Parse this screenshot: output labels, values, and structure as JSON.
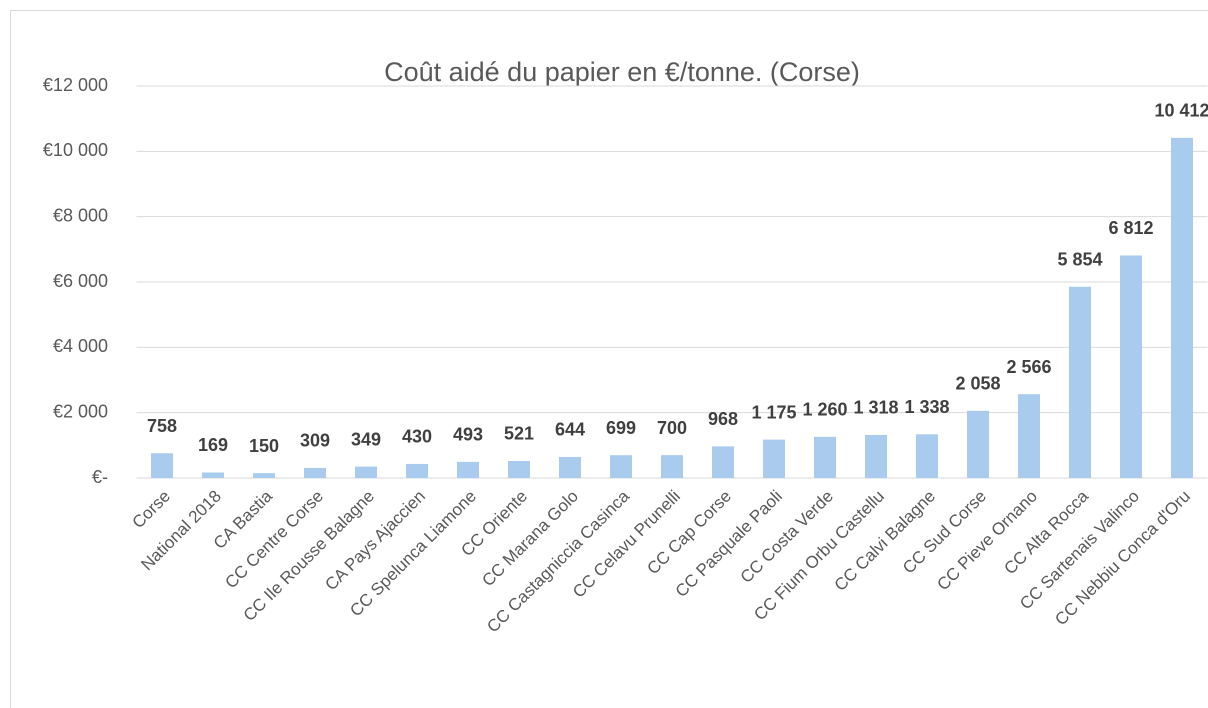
{
  "chart_data": {
    "type": "bar",
    "title": "Coût aidé du papier en €/tonne. (Corse)",
    "categories": [
      "Corse",
      "National 2018",
      "CA Bastia",
      "CC Centre Corse",
      "CC Ile Rousse Balagne",
      "CA Pays Ajaccien",
      "CC Spelunca Liamone",
      "CC Oriente",
      "CC Marana Golo",
      "CC Castagniccia Casinca",
      "CC Celavu Prunelli",
      "CC Cap Corse",
      "CC Pasquale Paoli",
      "CC Costa Verde",
      "CC Fium Orbu Castellu",
      "CC Calvi Balagne",
      "CC Sud Corse",
      "CC Pieve Ornano",
      "CC Alta Rocca",
      "CC Sartenais Valinco",
      "CC Nebbiu Conca d'Oru"
    ],
    "values": [
      758,
      169,
      150,
      309,
      349,
      430,
      493,
      521,
      644,
      699,
      700,
      968,
      1175,
      1260,
      1318,
      1338,
      2058,
      2566,
      5854,
      6812,
      10412
    ],
    "value_labels": [
      "758",
      "169",
      "150",
      "309",
      "349",
      "430",
      "493",
      "521",
      "644",
      "699",
      "700",
      "968",
      "1 175",
      "1 260",
      "1 318",
      "1 338",
      "2 058",
      "2 566",
      "5 854",
      "6 812",
      "10 412"
    ],
    "color": "#a9cbee",
    "ylim": [
      0,
      12000
    ],
    "yticks": [
      {
        "value": 0,
        "label": "€-"
      },
      {
        "value": 2000,
        "label": "€2 000"
      },
      {
        "value": 4000,
        "label": "€4 000"
      },
      {
        "value": 6000,
        "label": "€6 000"
      },
      {
        "value": 8000,
        "label": "€8 000"
      },
      {
        "value": 10000,
        "label": "€10 000"
      },
      {
        "value": 12000,
        "label": "€12 000"
      }
    ],
    "grid": true
  }
}
